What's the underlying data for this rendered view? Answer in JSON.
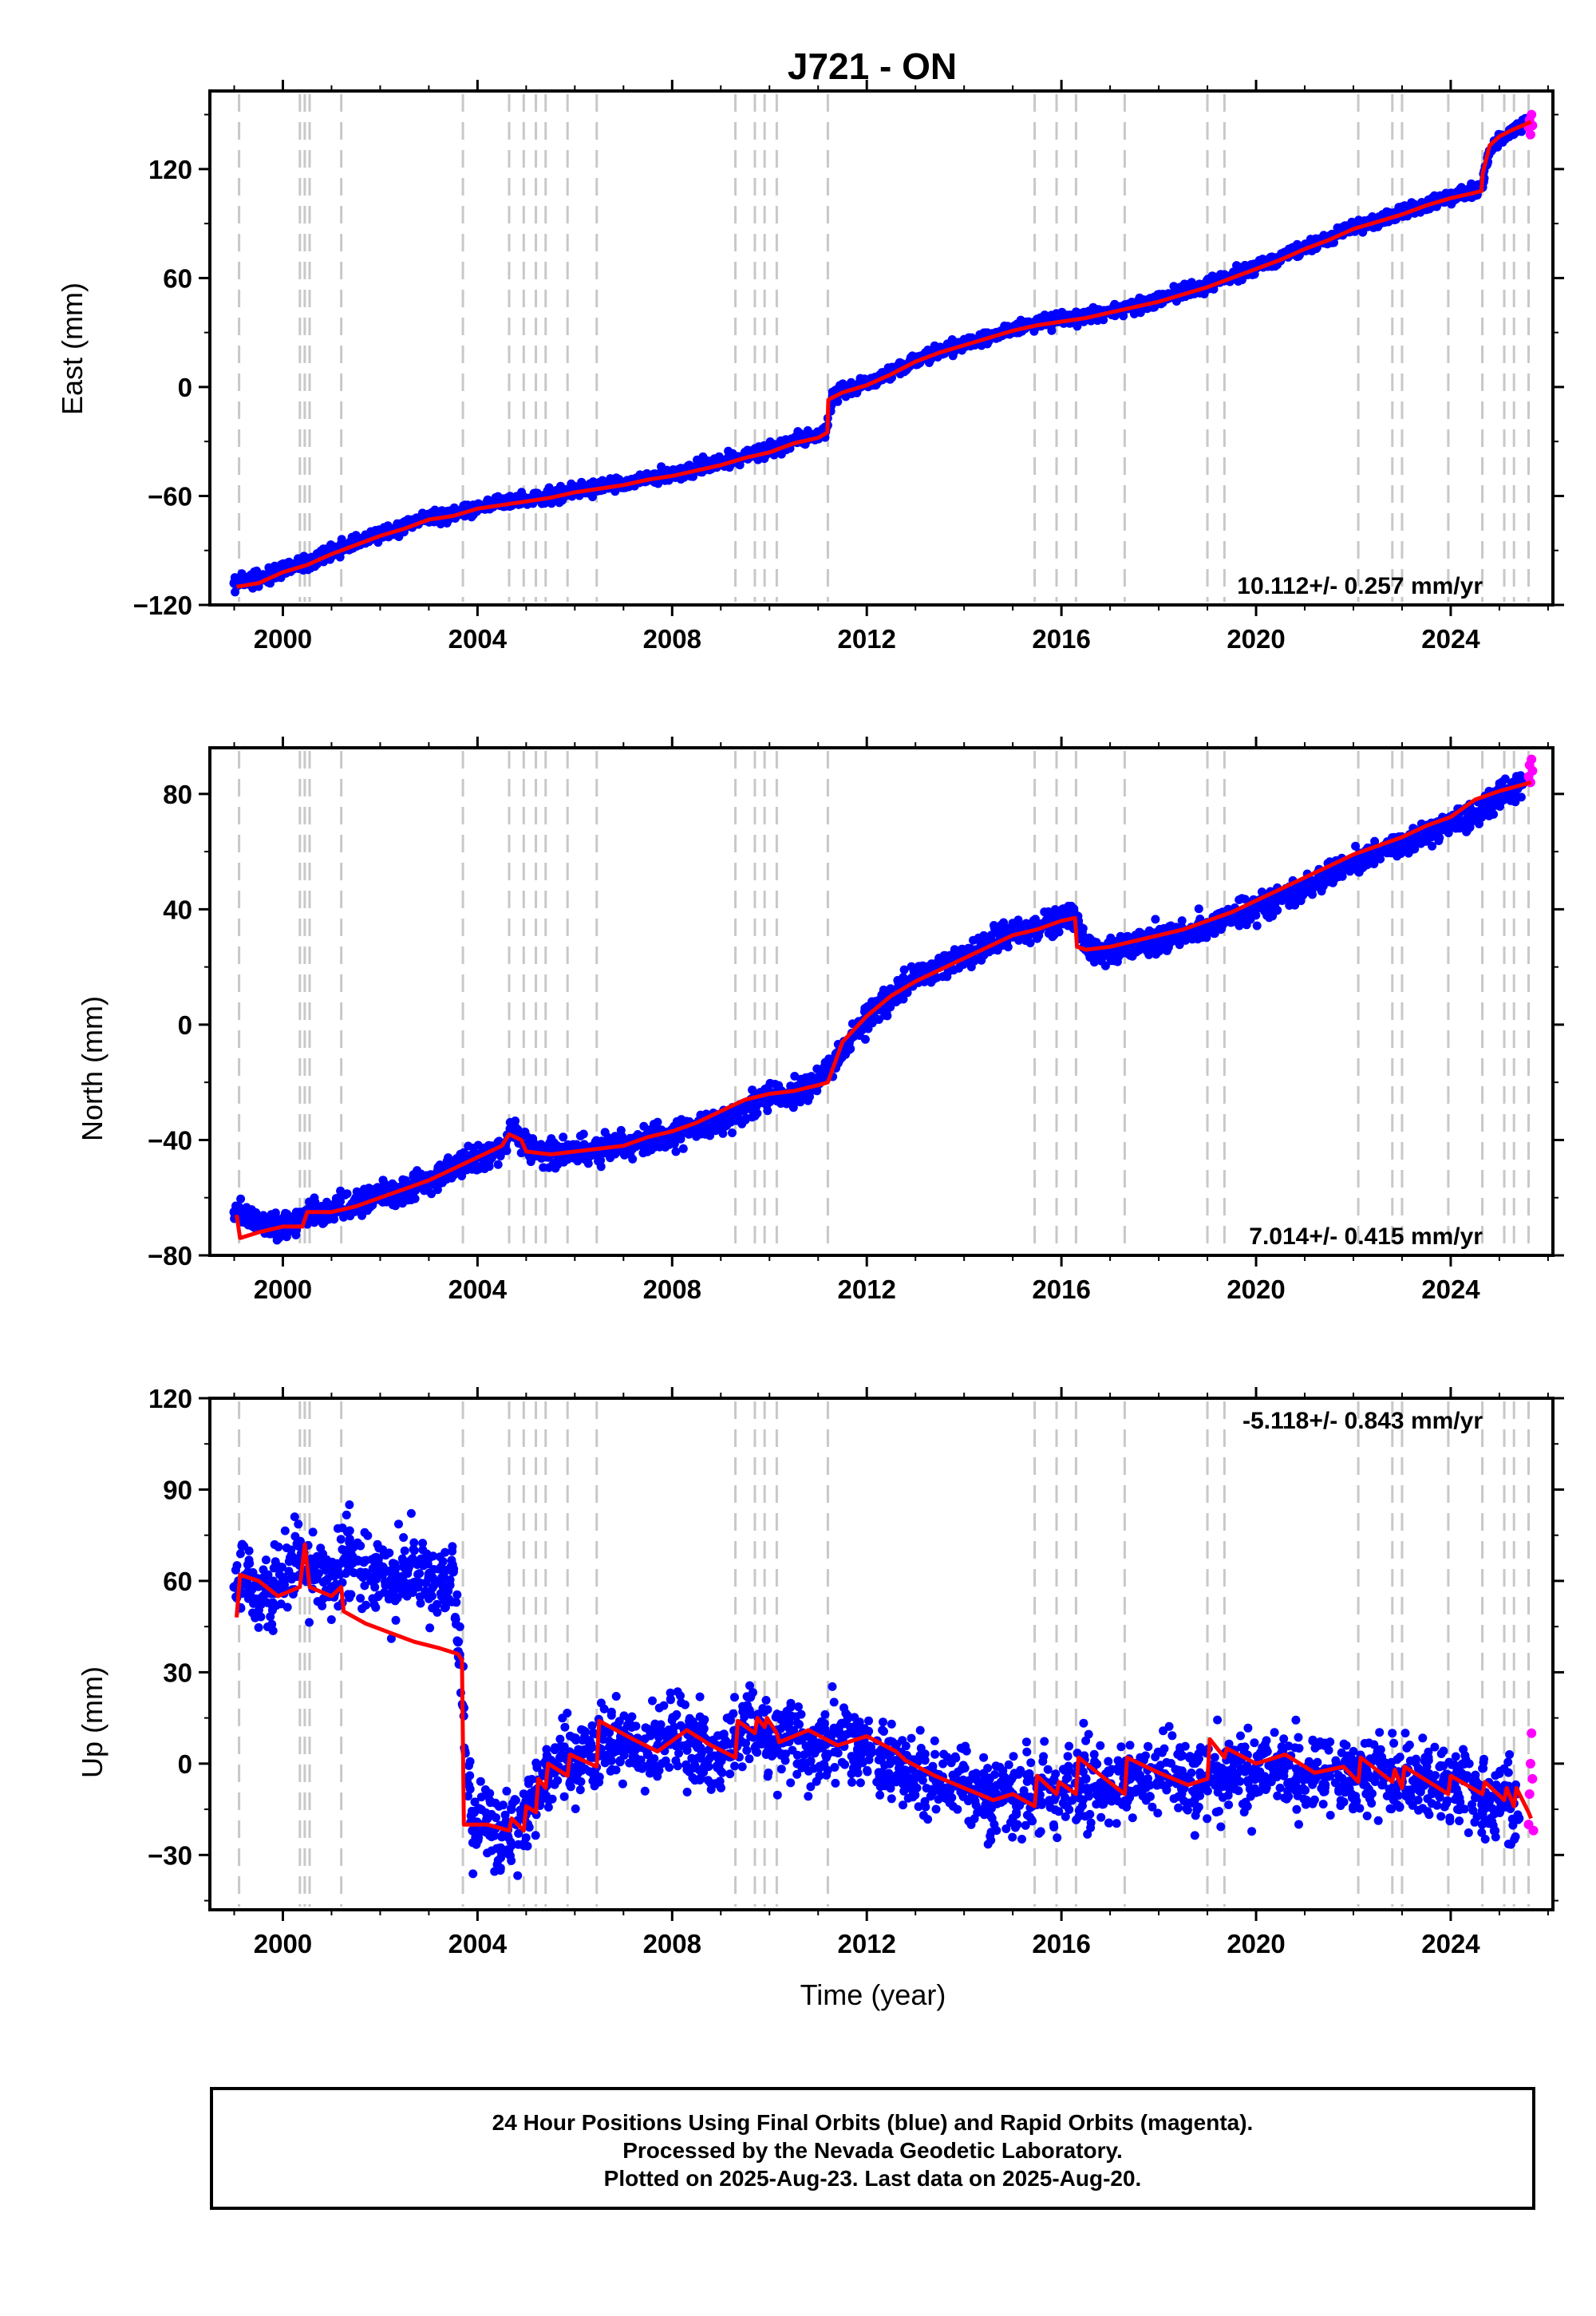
{
  "title": "J721 - ON",
  "xlabel": "Time (year)",
  "caption": [
    "24 Hour Positions Using Final Orbits (blue) and Rapid Orbits (magenta).",
    "Processed by the Nevada Geodetic Laboratory.",
    "Plotted on 2025-Aug-23. Last data on 2025-Aug-20."
  ],
  "colors": {
    "final_orbits": "#0000ff",
    "rapid_orbits": "#ff00ff",
    "model": "#ff0000",
    "event_lines": "#c8c8c8"
  },
  "chart_data": [
    {
      "type": "scatter",
      "panel": "east",
      "ylabel": "East (mm)",
      "xlim": [
        1998.5,
        2026.1
      ],
      "ylim": [
        -120,
        163
      ],
      "x_ticks": [
        2000,
        2004,
        2008,
        2012,
        2016,
        2020,
        2024
      ],
      "y_ticks": [
        -120,
        -60,
        0,
        60,
        120
      ],
      "rate_label": "10.112+/- 0.257 mm/yr",
      "rate_position": "bottom-right",
      "event_lines": [
        1999.1,
        2000.35,
        2000.45,
        2000.55,
        2001.2,
        2003.7,
        2004.65,
        2004.95,
        2005.2,
        2005.4,
        2005.85,
        2006.45,
        2009.3,
        2009.7,
        2009.9,
        2010.15,
        2011.2,
        2015.45,
        2015.9,
        2016.3,
        2017.3,
        2019.0,
        2019.35,
        2022.1,
        2022.8,
        2023.0,
        2023.95,
        2024.65,
        2025.1,
        2025.3,
        2025.6
      ],
      "series": [
        {
          "name": "Final Orbits",
          "color": "#0000ff",
          "kind": "points",
          "x": [
            1999.0,
            1999.5,
            2000.0,
            2000.5,
            2001.0,
            2001.5,
            2002.0,
            2002.5,
            2003.0,
            2003.5,
            2004.0,
            2004.5,
            2005.0,
            2005.5,
            2006.0,
            2006.5,
            2007.0,
            2007.5,
            2008.0,
            2008.5,
            2009.0,
            2009.5,
            2010.0,
            2010.5,
            2011.0,
            2011.15,
            2011.3,
            2011.5,
            2012.0,
            2012.5,
            2013.0,
            2013.5,
            2014.0,
            2014.5,
            2015.0,
            2015.5,
            2016.0,
            2016.5,
            2017.0,
            2017.5,
            2018.0,
            2018.5,
            2019.0,
            2019.5,
            2020.0,
            2020.5,
            2021.0,
            2021.5,
            2022.0,
            2022.5,
            2023.0,
            2023.5,
            2024.0,
            2024.5,
            2024.65,
            2024.8,
            2025.0,
            2025.3,
            2025.55
          ],
          "y": [
            -108,
            -106,
            -100,
            -97,
            -91,
            -86,
            -81,
            -77,
            -72,
            -70,
            -66,
            -64,
            -62,
            -60,
            -57,
            -55,
            -53,
            -50,
            -48,
            -45,
            -42,
            -38,
            -35,
            -30,
            -27,
            -24,
            -5,
            -2,
            2,
            8,
            15,
            20,
            24,
            28,
            32,
            35,
            37,
            39,
            42,
            45,
            48,
            52,
            56,
            61,
            66,
            71,
            77,
            82,
            88,
            92,
            96,
            101,
            105,
            108,
            110,
            130,
            136,
            141,
            146
          ]
        },
        {
          "name": "Rapid Orbits",
          "color": "#ff00ff",
          "kind": "points",
          "x": [
            2025.6,
            2025.62,
            2025.64,
            2025.66,
            2025.68
          ],
          "y": [
            143,
            147,
            139,
            150,
            144
          ]
        },
        {
          "name": "Model",
          "color": "#ff0000",
          "kind": "line",
          "x": [
            1999.05,
            1999.5,
            2000.0,
            2000.5,
            2001.0,
            2001.5,
            2002.0,
            2002.5,
            2003.0,
            2003.5,
            2004.0,
            2004.5,
            2005.0,
            2005.5,
            2006.0,
            2006.5,
            2007.0,
            2007.5,
            2008.0,
            2008.5,
            2009.0,
            2009.5,
            2010.0,
            2010.5,
            2011.0,
            2011.19,
            2011.21,
            2011.5,
            2012.0,
            2012.5,
            2013.0,
            2013.5,
            2014.0,
            2014.5,
            2015.0,
            2015.5,
            2016.0,
            2016.5,
            2017.0,
            2017.5,
            2018.0,
            2018.5,
            2019.0,
            2019.5,
            2020.0,
            2020.5,
            2021.0,
            2021.5,
            2022.0,
            2022.5,
            2023.0,
            2023.5,
            2024.0,
            2024.5,
            2024.63,
            2024.66,
            2024.8,
            2025.0,
            2025.3,
            2025.65
          ],
          "y": [
            -110,
            -108,
            -102,
            -98,
            -92,
            -87,
            -82,
            -78,
            -73,
            -71,
            -67,
            -65,
            -63,
            -61,
            -58,
            -56,
            -54,
            -51,
            -49,
            -46,
            -43,
            -39,
            -36,
            -31,
            -28,
            -25,
            -7,
            -3,
            1,
            7,
            14,
            19,
            23,
            27,
            31,
            34,
            36,
            38,
            41,
            44,
            47,
            51,
            55,
            60,
            65,
            70,
            76,
            81,
            87,
            91,
            95,
            100,
            104,
            107,
            108,
            118,
            133,
            138,
            142,
            146
          ]
        }
      ]
    },
    {
      "type": "scatter",
      "panel": "north",
      "ylabel": "North (mm)",
      "xlim": [
        1998.5,
        2026.1
      ],
      "ylim": [
        -80,
        96
      ],
      "x_ticks": [
        2000,
        2004,
        2008,
        2012,
        2016,
        2020,
        2024
      ],
      "y_ticks": [
        -80,
        -40,
        0,
        40,
        80
      ],
      "rate_label": "7.014+/- 0.415 mm/yr",
      "rate_position": "bottom-right",
      "event_lines": [
        1999.1,
        2000.35,
        2000.45,
        2000.55,
        2001.2,
        2003.7,
        2004.65,
        2004.95,
        2005.2,
        2005.4,
        2005.85,
        2006.45,
        2009.3,
        2009.7,
        2009.9,
        2010.15,
        2011.2,
        2015.45,
        2015.9,
        2016.3,
        2017.3,
        2019.0,
        2019.35,
        2022.1,
        2022.8,
        2023.0,
        2023.95,
        2024.65,
        2025.1,
        2025.3,
        2025.6
      ],
      "series": [
        {
          "name": "Final Orbits",
          "color": "#0000ff",
          "kind": "points",
          "x": [
            1999.0,
            1999.5,
            2000.0,
            2000.5,
            2001.0,
            2001.5,
            2002.0,
            2002.5,
            2003.0,
            2003.5,
            2004.0,
            2004.5,
            2004.7,
            2005.0,
            2005.5,
            2006.0,
            2006.5,
            2007.0,
            2007.5,
            2008.0,
            2008.5,
            2009.0,
            2009.5,
            2010.0,
            2010.5,
            2011.0,
            2011.5,
            2012.0,
            2012.5,
            2013.0,
            2013.5,
            2014.0,
            2014.5,
            2015.0,
            2015.5,
            2016.0,
            2016.3,
            2016.5,
            2017.0,
            2017.5,
            2018.0,
            2018.5,
            2019.0,
            2019.5,
            2020.0,
            2020.5,
            2021.0,
            2021.5,
            2022.0,
            2022.5,
            2023.0,
            2023.5,
            2024.0,
            2024.5,
            2025.0,
            2025.5
          ],
          "y": [
            -65,
            -68,
            -70,
            -66,
            -64,
            -62,
            -60,
            -57,
            -54,
            -50,
            -46,
            -44,
            -36,
            -42,
            -45,
            -44,
            -44,
            -42,
            -40,
            -38,
            -36,
            -33,
            -29,
            -25,
            -24,
            -20,
            -8,
            2,
            10,
            16,
            20,
            24,
            28,
            32,
            33,
            37,
            37,
            26,
            26,
            28,
            30,
            32,
            34,
            37,
            40,
            44,
            48,
            52,
            56,
            60,
            63,
            66,
            70,
            73,
            80,
            84
          ]
        },
        {
          "name": "Rapid Orbits",
          "color": "#ff00ff",
          "kind": "points",
          "x": [
            2025.6,
            2025.62,
            2025.64,
            2025.66,
            2025.68
          ],
          "y": [
            86,
            90,
            84,
            92,
            88
          ]
        },
        {
          "name": "Model",
          "color": "#ff0000",
          "kind": "line",
          "x": [
            1999.05,
            1999.12,
            1999.5,
            2000.0,
            2000.4,
            2000.5,
            2001.0,
            2001.5,
            2002.0,
            2002.5,
            2003.0,
            2003.5,
            2004.0,
            2004.5,
            2004.65,
            2004.9,
            2005.0,
            2005.5,
            2006.0,
            2006.5,
            2007.0,
            2007.5,
            2008.0,
            2008.5,
            2009.0,
            2009.5,
            2010.0,
            2010.5,
            2011.0,
            2011.2,
            2011.5,
            2012.0,
            2012.5,
            2013.0,
            2013.5,
            2014.0,
            2014.5,
            2015.0,
            2015.5,
            2016.0,
            2016.28,
            2016.32,
            2016.5,
            2017.0,
            2017.5,
            2018.0,
            2018.5,
            2019.0,
            2019.5,
            2020.0,
            2020.5,
            2021.0,
            2021.5,
            2022.0,
            2022.5,
            2023.0,
            2023.5,
            2024.0,
            2024.5,
            2025.0,
            2025.65
          ],
          "y": [
            -66,
            -74,
            -72,
            -70,
            -70,
            -65,
            -65,
            -63,
            -60,
            -57,
            -54,
            -50,
            -46,
            -42,
            -38,
            -40,
            -44,
            -45,
            -44,
            -43,
            -42,
            -39,
            -37,
            -34,
            -30,
            -26,
            -24,
            -23,
            -21,
            -20,
            -6,
            3,
            10,
            15,
            19,
            23,
            27,
            31,
            33,
            36,
            37,
            27,
            26,
            27,
            29,
            31,
            33,
            36,
            39,
            43,
            47,
            51,
            55,
            59,
            62,
            65,
            69,
            72,
            78,
            81,
            84
          ]
        }
      ]
    },
    {
      "type": "scatter",
      "panel": "up",
      "ylabel": "Up (mm)",
      "xlim": [
        1998.5,
        2026.1
      ],
      "ylim": [
        -48,
        120
      ],
      "x_ticks": [
        2000,
        2004,
        2008,
        2012,
        2016,
        2020,
        2024
      ],
      "y_ticks": [
        -30,
        0,
        30,
        60,
        90,
        120
      ],
      "rate_label": "-5.118+/- 0.843 mm/yr",
      "rate_position": "top-right",
      "event_lines": [
        1999.1,
        2000.35,
        2000.45,
        2000.55,
        2001.2,
        2003.7,
        2004.65,
        2004.95,
        2005.2,
        2005.4,
        2005.85,
        2006.45,
        2009.3,
        2009.7,
        2009.9,
        2010.15,
        2011.2,
        2015.45,
        2015.9,
        2016.3,
        2017.3,
        2019.0,
        2019.35,
        2022.1,
        2022.8,
        2023.0,
        2023.95,
        2024.65,
        2025.1,
        2025.3,
        2025.6
      ],
      "series": [
        {
          "name": "Final Orbits",
          "color": "#0000ff",
          "kind": "points",
          "x": [
            1999.0,
            1999.3,
            1999.6,
            2000.0,
            2000.3,
            2000.6,
            2001.0,
            2001.3,
            2001.6,
            2002.0,
            2002.3,
            2002.6,
            2003.0,
            2003.3,
            2003.5,
            2003.6,
            2003.9,
            2004.2,
            2004.5,
            2004.8,
            2005.1,
            2005.4,
            2005.7,
            2006.0,
            2006.5,
            2007.0,
            2007.5,
            2008.0,
            2008.5,
            2009.0,
            2009.5,
            2010.0,
            2010.5,
            2011.0,
            2011.5,
            2012.0,
            2012.5,
            2012.8,
            2013.0,
            2013.5,
            2014.0,
            2014.5,
            2015.0,
            2015.5,
            2016.0,
            2016.5,
            2017.0,
            2017.5,
            2018.0,
            2018.5,
            2019.0,
            2019.5,
            2020.0,
            2020.5,
            2021.0,
            2021.5,
            2022.0,
            2022.5,
            2023.0,
            2023.5,
            2024.0,
            2024.5,
            2025.0,
            2025.4
          ],
          "y": [
            58,
            62,
            55,
            60,
            66,
            63,
            58,
            70,
            62,
            64,
            60,
            66,
            61,
            58,
            63,
            40,
            -22,
            -18,
            -24,
            -20,
            -12,
            -4,
            2,
            -2,
            5,
            8,
            3,
            10,
            6,
            2,
            12,
            7,
            9,
            5,
            8,
            4,
            1,
            -5,
            -4,
            -8,
            -6,
            -10,
            -12,
            -8,
            -9,
            -5,
            -7,
            -4,
            -3,
            -6,
            -4,
            -2,
            -3,
            -1,
            -4,
            -2,
            -5,
            -3,
            -6,
            -4,
            -7,
            -9,
            -12,
            -18
          ]
        },
        {
          "name": "Rapid Orbits",
          "color": "#ff00ff",
          "kind": "points",
          "x": [
            2025.6,
            2025.62,
            2025.64,
            2025.66,
            2025.68,
            2025.7
          ],
          "y": [
            -20,
            -10,
            0,
            10,
            -5,
            -22
          ]
        },
        {
          "name": "Model",
          "color": "#ff0000",
          "kind": "line",
          "x": [
            1999.05,
            1999.12,
            1999.5,
            1999.9,
            2000.35,
            2000.45,
            2000.55,
            2001.0,
            2001.2,
            2001.25,
            2001.7,
            2002.2,
            2002.7,
            2003.2,
            2003.6,
            2003.68,
            2003.72,
            2004.2,
            2004.65,
            2004.7,
            2004.95,
            2005.0,
            2005.2,
            2005.25,
            2005.4,
            2005.45,
            2005.85,
            2005.9,
            2006.45,
            2006.5,
            2007.2,
            2007.7,
            2008.3,
            2008.8,
            2009.3,
            2009.35,
            2009.7,
            2009.75,
            2009.9,
            2009.95,
            2010.15,
            2010.2,
            2010.8,
            2011.4,
            2012.0,
            2012.6,
            2012.8,
            2013.4,
            2014.0,
            2014.6,
            2015.0,
            2015.45,
            2015.5,
            2015.9,
            2015.95,
            2016.3,
            2016.35,
            2016.9,
            2017.3,
            2017.35,
            2018.0,
            2018.6,
            2019.0,
            2019.05,
            2019.35,
            2019.4,
            2020.0,
            2020.6,
            2021.2,
            2021.8,
            2022.1,
            2022.15,
            2022.8,
            2022.85,
            2023.0,
            2023.05,
            2023.95,
            2024.0,
            2024.65,
            2024.7,
            2025.1,
            2025.15,
            2025.3,
            2025.35,
            2025.6,
            2025.65
          ],
          "y": [
            48,
            62,
            60,
            55,
            58,
            72,
            58,
            55,
            58,
            50,
            46,
            43,
            40,
            38,
            36,
            34,
            -20,
            -20,
            -22,
            -18,
            -22,
            -14,
            -16,
            -5,
            -8,
            0,
            -4,
            3,
            -1,
            14,
            8,
            4,
            11,
            6,
            2,
            14,
            10,
            15,
            12,
            15,
            10,
            7,
            11,
            6,
            9,
            4,
            1,
            -4,
            -8,
            -12,
            -10,
            -14,
            -4,
            -10,
            -6,
            -10,
            2,
            -5,
            -10,
            2,
            -3,
            -7,
            -5,
            8,
            2,
            5,
            0,
            3,
            -3,
            -1,
            -6,
            2,
            -6,
            -2,
            -8,
            -1,
            -10,
            -4,
            -10,
            -6,
            -12,
            -8,
            -14,
            -8,
            -16,
            -18
          ]
        }
      ]
    }
  ]
}
